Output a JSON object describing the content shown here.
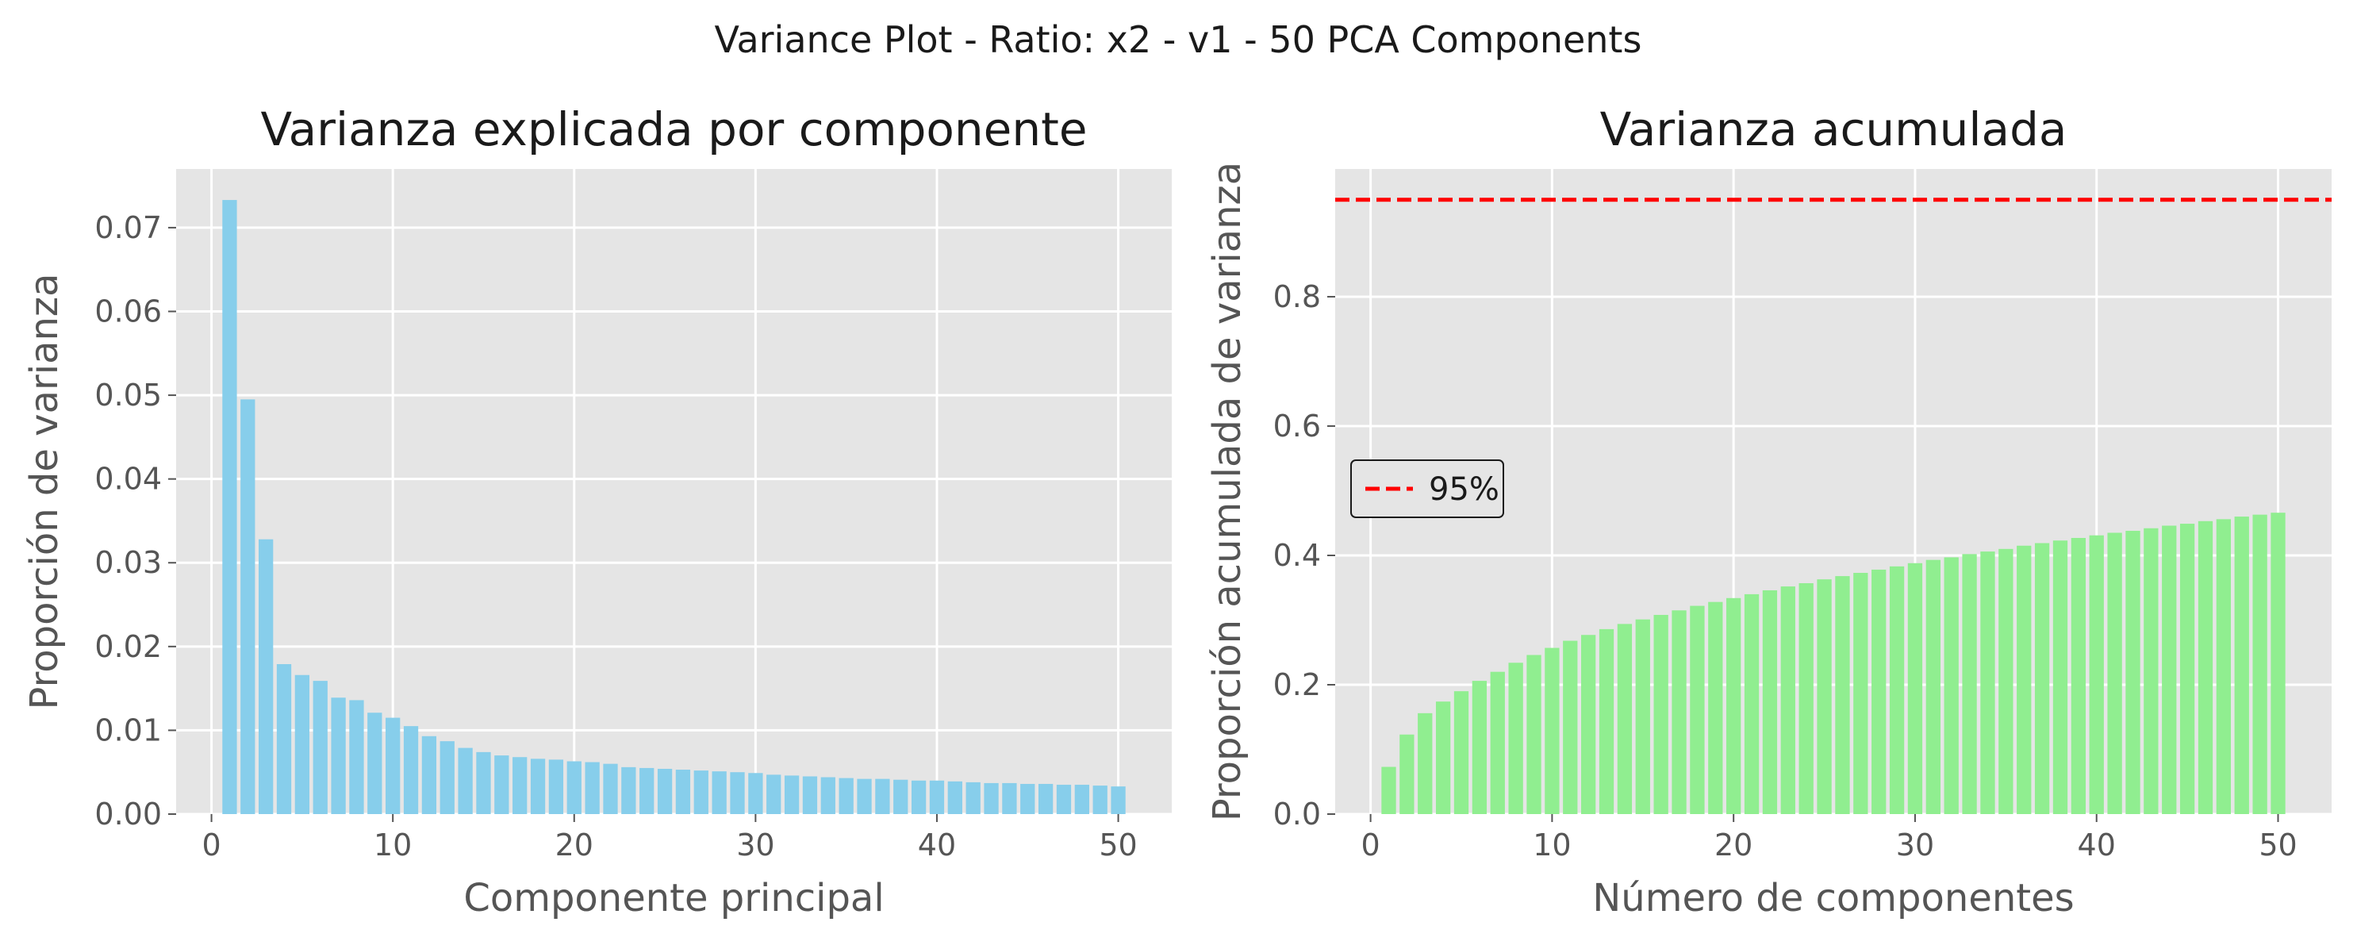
{
  "figure": {
    "suptitle": "Variance Plot - Ratio: x2 - v1 - 50 PCA Components"
  },
  "colors": {
    "panel_background": "#e5e5e5",
    "grid": "#ffffff",
    "tick_text": "#555555",
    "left_bars": "#87ceeb",
    "right_bars": "#90ee90",
    "threshold_line": "#ff0000"
  },
  "chart_data": [
    {
      "type": "bar",
      "title": "Varianza explicada por componente",
      "xlabel": "Componente principal",
      "ylabel": "Proporción de varianza",
      "xlim": [
        -1.95,
        52.95
      ],
      "ylim": [
        0,
        0.077
      ],
      "x_ticks": [
        0,
        10,
        20,
        30,
        40,
        50
      ],
      "x_tick_labels": [
        "0",
        "10",
        "20",
        "30",
        "40",
        "50"
      ],
      "y_ticks": [
        0,
        0.01,
        0.02,
        0.03,
        0.04,
        0.05,
        0.06,
        0.07
      ],
      "y_tick_labels": [
        "0.00",
        "0.01",
        "0.02",
        "0.03",
        "0.04",
        "0.05",
        "0.06",
        "0.07"
      ],
      "grid": true,
      "bar_color": "#87ceeb",
      "x": [
        1,
        2,
        3,
        4,
        5,
        6,
        7,
        8,
        9,
        10,
        11,
        12,
        13,
        14,
        15,
        16,
        17,
        18,
        19,
        20,
        21,
        22,
        23,
        24,
        25,
        26,
        27,
        28,
        29,
        30,
        31,
        32,
        33,
        34,
        35,
        36,
        37,
        38,
        39,
        40,
        41,
        42,
        43,
        44,
        45,
        46,
        47,
        48,
        49,
        50
      ],
      "values": [
        0.0733,
        0.0495,
        0.0328,
        0.0179,
        0.0166,
        0.0159,
        0.0139,
        0.0136,
        0.0121,
        0.0115,
        0.0105,
        0.0093,
        0.0087,
        0.0079,
        0.0074,
        0.007,
        0.0068,
        0.0066,
        0.0065,
        0.0063,
        0.0062,
        0.006,
        0.0056,
        0.0055,
        0.0054,
        0.0053,
        0.0052,
        0.0051,
        0.005,
        0.0049,
        0.0047,
        0.0046,
        0.0045,
        0.0044,
        0.0043,
        0.0042,
        0.0042,
        0.0041,
        0.004,
        0.004,
        0.0039,
        0.0038,
        0.0037,
        0.0037,
        0.0036,
        0.0036,
        0.0035,
        0.0035,
        0.0034,
        0.0033
      ]
    },
    {
      "type": "bar",
      "title": "Varianza acumulada",
      "xlabel": "Número de componentes",
      "ylabel": "Proporción acumulada de varianza",
      "xlim": [
        -1.95,
        52.95
      ],
      "ylim": [
        0,
        0.9975
      ],
      "x_ticks": [
        0,
        10,
        20,
        30,
        40,
        50
      ],
      "x_tick_labels": [
        "0",
        "10",
        "20",
        "30",
        "40",
        "50"
      ],
      "y_ticks": [
        0,
        0.2,
        0.4,
        0.6,
        0.8
      ],
      "y_tick_labels": [
        "0.0",
        "0.2",
        "0.4",
        "0.6",
        "0.8"
      ],
      "grid": true,
      "bar_color": "#90ee90",
      "x": [
        1,
        2,
        3,
        4,
        5,
        6,
        7,
        8,
        9,
        10,
        11,
        12,
        13,
        14,
        15,
        16,
        17,
        18,
        19,
        20,
        21,
        22,
        23,
        24,
        25,
        26,
        27,
        28,
        29,
        30,
        31,
        32,
        33,
        34,
        35,
        36,
        37,
        38,
        39,
        40,
        41,
        42,
        43,
        44,
        45,
        46,
        47,
        48,
        49,
        50
      ],
      "values": [
        0.073,
        0.123,
        0.156,
        0.174,
        0.19,
        0.206,
        0.22,
        0.234,
        0.246,
        0.257,
        0.268,
        0.277,
        0.286,
        0.294,
        0.301,
        0.308,
        0.315,
        0.322,
        0.328,
        0.334,
        0.34,
        0.346,
        0.352,
        0.357,
        0.363,
        0.368,
        0.373,
        0.378,
        0.383,
        0.388,
        0.393,
        0.397,
        0.402,
        0.406,
        0.41,
        0.415,
        0.419,
        0.423,
        0.427,
        0.431,
        0.435,
        0.438,
        0.442,
        0.446,
        0.449,
        0.453,
        0.456,
        0.46,
        0.463,
        0.466
      ],
      "threshold": {
        "value": 0.95,
        "style": "dashed",
        "color": "#ff0000",
        "legend_label": "95%",
        "legend_placement": "center-left"
      }
    }
  ]
}
